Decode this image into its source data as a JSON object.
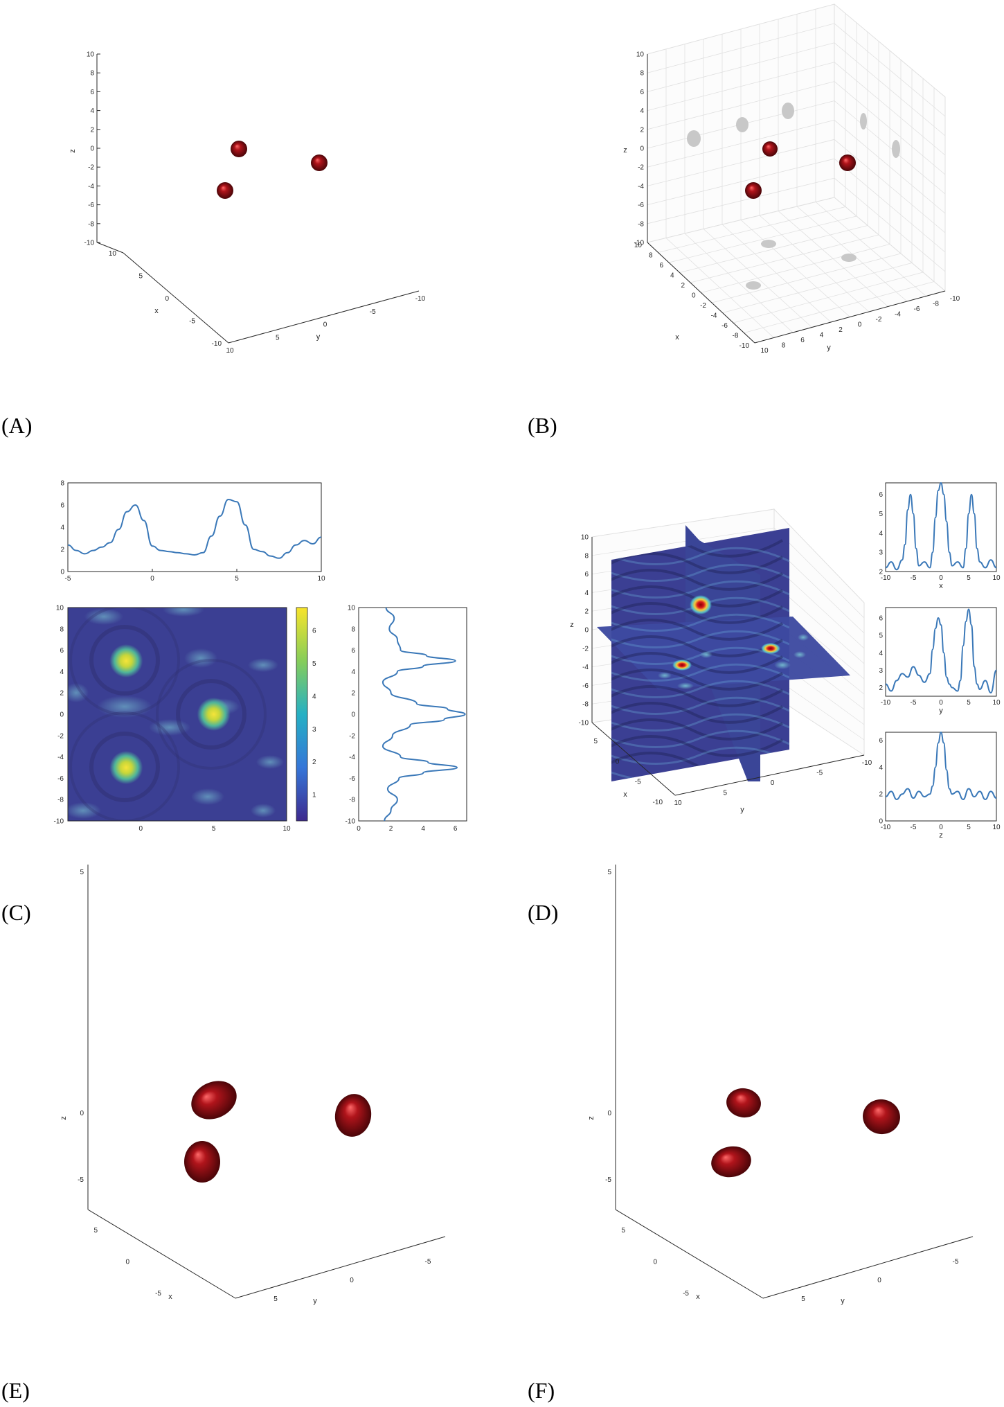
{
  "colors": {
    "sphere": "#b0141b",
    "sphere_highlight": "#ff6a6a",
    "axis": "#262626",
    "grid": "#e0e0e0",
    "shadow": "#c8c8c8",
    "line": "#3a78b8",
    "field_low": "#3b3f93",
    "field_high": "#f5e43a",
    "slice_peak": "#d7191c"
  },
  "panels": [
    {
      "id": "A",
      "label": "(A)"
    },
    {
      "id": "B",
      "label": "(B)"
    },
    {
      "id": "C",
      "label": "(C)"
    },
    {
      "id": "D",
      "label": "(D)"
    },
    {
      "id": "E",
      "label": "(E)"
    },
    {
      "id": "F",
      "label": "(F)"
    }
  ],
  "chart_data": [
    {
      "panel": "A",
      "type": "scatter",
      "subtype": "3d-spheres",
      "grid": false,
      "xlabel": "x",
      "ylabel": "y",
      "zlabel": "z",
      "xlim": [
        -10,
        10
      ],
      "ylim": [
        -10,
        10
      ],
      "zlim": [
        -10,
        10
      ],
      "zticks": [
        "10",
        "8",
        "6",
        "4",
        "2",
        "0",
        "-2",
        "-4",
        "-6",
        "-8",
        "-10"
      ],
      "xticks": [
        "10",
        "5",
        "0",
        "-5",
        "-10"
      ],
      "yticks": [
        "10",
        "5",
        "0",
        "-5",
        "-10"
      ],
      "points": [
        {
          "x": -1,
          "y": 5,
          "z": 0
        },
        {
          "x": 5,
          "y": 0,
          "z": 0
        },
        {
          "x": -1,
          "y": -5,
          "z": 0
        }
      ]
    },
    {
      "panel": "B",
      "type": "scatter",
      "subtype": "3d-spheres-with-projections",
      "grid": true,
      "xlabel": "x",
      "ylabel": "y",
      "zlabel": "z",
      "xlim": [
        -10,
        10
      ],
      "ylim": [
        -10,
        10
      ],
      "zlim": [
        -10,
        10
      ],
      "zticks": [
        "10",
        "8",
        "6",
        "4",
        "2",
        "0",
        "-2",
        "-4",
        "-6",
        "-8",
        "-10"
      ],
      "xticks": [
        "10",
        "8",
        "6",
        "4",
        "2",
        "0",
        "-2",
        "-4",
        "-6",
        "-8",
        "-10"
      ],
      "yticks": [
        "10",
        "8",
        "6",
        "4",
        "2",
        "0",
        "-2",
        "-4",
        "-6",
        "-8",
        "-10"
      ],
      "points": [
        {
          "x": -1,
          "y": 5,
          "z": 0
        },
        {
          "x": 5,
          "y": 0,
          "z": 0
        },
        {
          "x": -1,
          "y": -5,
          "z": 0
        }
      ]
    },
    {
      "panel": "C",
      "type": "heatmap",
      "xlim": [
        -5,
        10
      ],
      "ylim": [
        -10,
        10
      ],
      "xticks": [
        "0",
        "5",
        "10"
      ],
      "yticks": [
        "10",
        "8",
        "6",
        "4",
        "2",
        "0",
        "-2",
        "-4",
        "-6",
        "-8",
        "-10"
      ],
      "colorbar": {
        "ticks": [
          "6",
          "5",
          "4",
          "3",
          "2",
          "1"
        ],
        "range": [
          0.2,
          6.7
        ]
      },
      "peaks": [
        {
          "x": -1,
          "y": 5,
          "value": 6.0
        },
        {
          "x": 5,
          "y": 0,
          "value": 6.6
        },
        {
          "x": -1,
          "y": -5,
          "value": 6.1
        }
      ],
      "top_profile": {
        "xticks": [
          "-5",
          "0",
          "5",
          "10"
        ],
        "yticks": [
          "8",
          "6",
          "4",
          "2",
          "0"
        ],
        "xlim": [
          -5,
          10
        ],
        "ylim": [
          0,
          8
        ],
        "x": [
          -5,
          -4.5,
          -4,
          -3.5,
          -3,
          -2.5,
          -2,
          -1.5,
          -1,
          -0.5,
          0,
          0.5,
          1,
          1.5,
          2,
          2.5,
          3,
          3.5,
          4,
          4.5,
          5,
          5.5,
          6,
          6.5,
          7,
          7.5,
          8,
          8.5,
          9,
          9.5,
          10
        ],
        "y": [
          2.4,
          1.9,
          1.6,
          1.9,
          2.2,
          2.6,
          3.8,
          5.4,
          6.0,
          4.6,
          2.3,
          1.9,
          1.8,
          1.7,
          1.6,
          1.5,
          1.7,
          3.2,
          5.0,
          6.5,
          6.3,
          4.2,
          2.0,
          1.8,
          1.4,
          1.2,
          1.7,
          2.4,
          2.8,
          2.5,
          3.1
        ]
      },
      "side_profile": {
        "xticks": [
          "0",
          "2",
          "4",
          "6"
        ],
        "yticks": [
          "10",
          "8",
          "6",
          "4",
          "2",
          "0",
          "-2",
          "-4",
          "-6",
          "-8",
          "-10"
        ],
        "xlim": [
          0,
          6.7
        ],
        "ylim": [
          -10,
          10
        ],
        "y": [
          10,
          9,
          8,
          7,
          6,
          5.5,
          5,
          4.5,
          4,
          3,
          2,
          1,
          0.5,
          0,
          -0.5,
          -1,
          -2,
          -3,
          -4,
          -4.5,
          -5,
          -5.5,
          -6,
          -7,
          -8,
          -9,
          -10
        ],
        "x": [
          1.7,
          2.2,
          1.9,
          2.4,
          2.6,
          4.2,
          6.0,
          4.0,
          2.4,
          1.5,
          2.0,
          3.6,
          5.5,
          6.6,
          5.3,
          3.2,
          2.1,
          1.5,
          2.6,
          4.3,
          6.1,
          4.0,
          2.5,
          1.8,
          2.4,
          2.0,
          1.6
        ]
      }
    },
    {
      "panel": "D",
      "type": "heatmap",
      "subtype": "3d-orthogonal-slices",
      "xlabel": "x",
      "ylabel": "y",
      "zlabel": "z",
      "zticks": [
        "10",
        "8",
        "6",
        "4",
        "2",
        "0",
        "-2",
        "-4",
        "-6",
        "-8",
        "-10"
      ],
      "xticks": [
        "5",
        "0",
        "-5",
        "-10"
      ],
      "yticks": [
        "10",
        "5",
        "0",
        "-5",
        "-10"
      ],
      "profiles": [
        {
          "xlabel": "x",
          "xlim": [
            -10,
            10
          ],
          "ylim": [
            2,
            6.6
          ],
          "xticks": [
            "-10",
            "-5",
            "0",
            "5",
            "10"
          ],
          "yticks": [
            "6",
            "5",
            "4",
            "3",
            "2"
          ],
          "x": [
            -10,
            -9,
            -8,
            -7,
            -6.5,
            -6,
            -5.5,
            -5,
            -4.5,
            -4,
            -3,
            -2,
            -1.5,
            -1,
            -0.5,
            0,
            0.5,
            1,
            1.5,
            2,
            3,
            4,
            4.5,
            5,
            5.5,
            6,
            6.5,
            7,
            8,
            9,
            10
          ],
          "y": [
            2.2,
            2.5,
            2.1,
            2.6,
            3.4,
            5.2,
            6.0,
            5.0,
            3.2,
            2.3,
            2.5,
            2.2,
            3.0,
            4.8,
            6.2,
            6.6,
            6.0,
            4.6,
            3.0,
            2.3,
            2.5,
            2.2,
            3.2,
            5.0,
            6.0,
            5.0,
            3.2,
            2.5,
            2.2,
            2.6,
            2.2
          ]
        },
        {
          "xlabel": "y",
          "xlim": [
            -10,
            10
          ],
          "ylim": [
            1.5,
            6.6
          ],
          "xticks": [
            "-10",
            "-5",
            "0",
            "5",
            "10"
          ],
          "yticks": [
            "6",
            "5",
            "4",
            "3",
            "2"
          ],
          "x": [
            -10,
            -9,
            -8,
            -7,
            -6,
            -5,
            -4,
            -3,
            -2,
            -1.5,
            -1,
            -0.5,
            0,
            0.5,
            1,
            1.5,
            2,
            3,
            3.5,
            4,
            4.5,
            5,
            5.5,
            6,
            6.5,
            7,
            8,
            9,
            10
          ],
          "y": [
            2.2,
            1.8,
            2.4,
            2.8,
            2.6,
            3.2,
            2.7,
            2.3,
            2.8,
            4.2,
            5.4,
            6.0,
            5.6,
            4.0,
            2.6,
            2.2,
            2.0,
            1.8,
            2.4,
            4.4,
            5.8,
            6.5,
            5.6,
            3.2,
            2.2,
            1.9,
            2.4,
            1.7,
            3.0
          ]
        },
        {
          "xlabel": "z",
          "xlim": [
            -10,
            10
          ],
          "ylim": [
            0,
            6.6
          ],
          "xticks": [
            "-10",
            "-5",
            "0",
            "5",
            "10"
          ],
          "yticks": [
            "6",
            "4",
            "2",
            "0"
          ],
          "x": [
            -10,
            -9,
            -8,
            -7,
            -6,
            -5,
            -4,
            -3,
            -2,
            -1.5,
            -1,
            -0.5,
            0,
            0.5,
            1,
            1.5,
            2,
            3,
            4,
            5,
            6,
            7,
            8,
            9,
            10
          ],
          "y": [
            1.8,
            2.2,
            1.6,
            2.0,
            2.4,
            1.7,
            2.2,
            1.8,
            2.0,
            2.6,
            4.0,
            5.8,
            6.6,
            5.8,
            3.8,
            2.4,
            2.0,
            2.2,
            1.6,
            2.4,
            1.8,
            2.2,
            1.6,
            2.2,
            1.7
          ]
        }
      ]
    },
    {
      "panel": "E",
      "type": "scatter",
      "subtype": "3d-reconstruction",
      "grid": false,
      "xlabel": "x",
      "ylabel": "y",
      "zlabel": "z",
      "zticks": [
        "5",
        "0",
        "-5"
      ],
      "xticks": [
        "5",
        "0",
        "-5"
      ],
      "yticks": [
        "5",
        "0",
        "-5"
      ],
      "points": [
        {
          "x": -1,
          "y": 5,
          "z": 0.6
        },
        {
          "x": 5,
          "y": 0,
          "z": 0
        },
        {
          "x": -1,
          "y": -5,
          "z": -0.6
        }
      ]
    },
    {
      "panel": "F",
      "type": "scatter",
      "subtype": "3d-reconstruction",
      "grid": false,
      "xlabel": "x",
      "ylabel": "y",
      "zlabel": "z",
      "zticks": [
        "5",
        "0",
        "-5"
      ],
      "xticks": [
        "5",
        "0",
        "-5"
      ],
      "yticks": [
        "5",
        "0",
        "-5"
      ],
      "points": [
        {
          "x": -1,
          "y": 5,
          "z": 0.6
        },
        {
          "x": 5,
          "y": 0,
          "z": 0
        },
        {
          "x": -1,
          "y": -5,
          "z": -0.6
        }
      ]
    }
  ]
}
